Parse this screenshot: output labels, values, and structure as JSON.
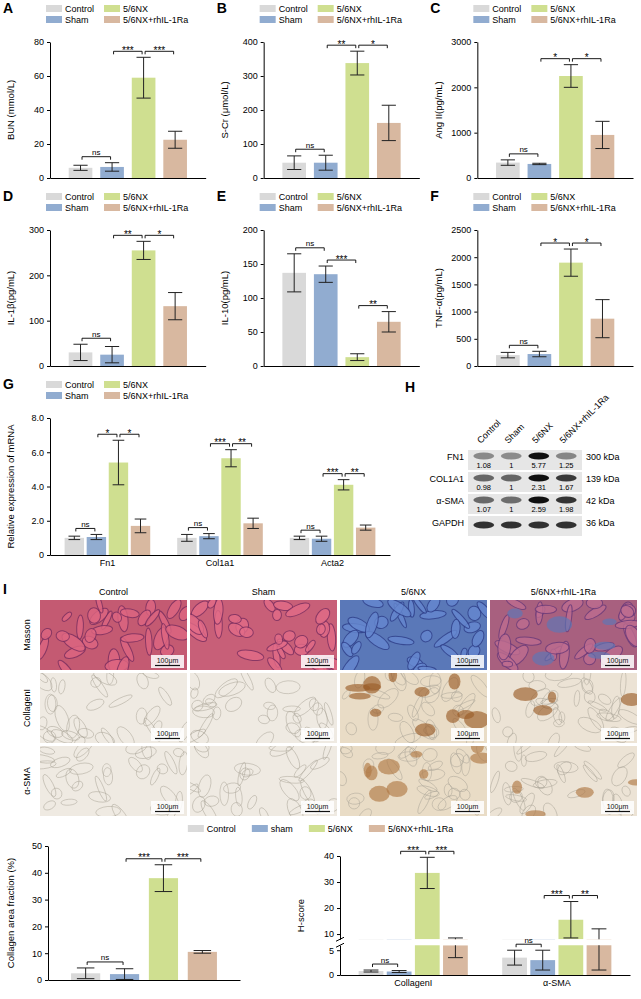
{
  "chart_data": [
    {
      "type": "bar",
      "panel": "A",
      "ylabel": "BUN (mmol/L)",
      "categories": [
        null
      ],
      "series": [
        {
          "name": "Control",
          "color": "#d9d9d9",
          "values": [
            6
          ],
          "errors": [
            1.5
          ]
        },
        {
          "name": "Sham",
          "color": "#91acd0",
          "values": [
            6.5
          ],
          "errors": [
            2.5
          ]
        },
        {
          "name": "5/6NX",
          "color": "#cfdf90",
          "values": [
            59
          ],
          "errors": [
            12
          ]
        },
        {
          "name": "5/6NX+rhIL-1Ra",
          "color": "#d8b8a0",
          "values": [
            22.5
          ],
          "errors": [
            5
          ]
        }
      ],
      "ylim": [
        0,
        80
      ],
      "yticks": [
        0,
        20,
        40,
        60,
        80
      ],
      "legend": "top",
      "tick_labels": "y",
      "significance": [
        {
          "pair": [
            "Control",
            "Sham"
          ],
          "label": "ns"
        },
        {
          "pair": [
            "Sham",
            "5/6NX"
          ],
          "label": "***"
        },
        {
          "pair": [
            "5/6NX",
            "5/6NX+rhIL-1Ra"
          ],
          "label": "***"
        }
      ]
    },
    {
      "type": "bar",
      "panel": "B",
      "ylabel": "S-Cr (μmol/L)",
      "categories": [
        null
      ],
      "series": [
        {
          "name": "Control",
          "color": "#d9d9d9",
          "values": [
            45
          ],
          "errors": [
            20
          ]
        },
        {
          "name": "Sham",
          "color": "#91acd0",
          "values": [
            45
          ],
          "errors": [
            22
          ]
        },
        {
          "name": "5/6NX",
          "color": "#cfdf90",
          "values": [
            338
          ],
          "errors": [
            35
          ]
        },
        {
          "name": "5/6NX+rhIL-1Ra",
          "color": "#d8b8a0",
          "values": [
            162
          ],
          "errors": [
            52
          ]
        }
      ],
      "ylim": [
        0,
        400
      ],
      "yticks": [
        0,
        100,
        200,
        300,
        400
      ],
      "legend": "top",
      "tick_labels": "y",
      "significance": [
        {
          "pair": [
            "Control",
            "Sham"
          ],
          "label": "ns"
        },
        {
          "pair": [
            "Sham",
            "5/6NX"
          ],
          "label": "**"
        },
        {
          "pair": [
            "5/6NX",
            "5/6NX+rhIL-1Ra"
          ],
          "label": "*"
        }
      ]
    },
    {
      "type": "bar",
      "panel": "C",
      "ylabel": "Ang II(pg/mL)",
      "categories": [
        null
      ],
      "series": [
        {
          "name": "Control",
          "color": "#d9d9d9",
          "values": [
            340
          ],
          "errors": [
            60
          ]
        },
        {
          "name": "Sham",
          "color": "#91acd0",
          "values": [
            310
          ],
          "errors": [
            15
          ]
        },
        {
          "name": "5/6NX",
          "color": "#cfdf90",
          "values": [
            2250
          ],
          "errors": [
            250
          ]
        },
        {
          "name": "5/6NX+rhIL-1Ra",
          "color": "#d8b8a0",
          "values": [
            950
          ],
          "errors": [
            300
          ]
        }
      ],
      "ylim": [
        0,
        3000
      ],
      "yticks": [
        0,
        1000,
        2000,
        3000
      ],
      "legend": "top",
      "tick_labels": "y",
      "significance": [
        {
          "pair": [
            "Control",
            "Sham"
          ],
          "label": "ns"
        },
        {
          "pair": [
            "Sham",
            "5/6NX"
          ],
          "label": "*"
        },
        {
          "pair": [
            "5/6NX",
            "5/6NX+rhIL-1Ra"
          ],
          "label": "*"
        }
      ]
    },
    {
      "type": "bar",
      "panel": "D",
      "ylabel": "IL-1β(pg/mL)",
      "categories": [
        null
      ],
      "series": [
        {
          "name": "Control",
          "color": "#d9d9d9",
          "values": [
            30
          ],
          "errors": [
            18
          ]
        },
        {
          "name": "Sham",
          "color": "#91acd0",
          "values": [
            25
          ],
          "errors": [
            18
          ]
        },
        {
          "name": "5/6NX",
          "color": "#cfdf90",
          "values": [
            255
          ],
          "errors": [
            20
          ]
        },
        {
          "name": "5/6NX+rhIL-1Ra",
          "color": "#d8b8a0",
          "values": [
            132
          ],
          "errors": [
            30
          ]
        }
      ],
      "ylim": [
        0,
        300
      ],
      "yticks": [
        0,
        100,
        200,
        300
      ],
      "legend": "top",
      "tick_labels": "y",
      "significance": [
        {
          "pair": [
            "Control",
            "Sham"
          ],
          "label": "ns"
        },
        {
          "pair": [
            "Sham",
            "5/6NX"
          ],
          "label": "**"
        },
        {
          "pair": [
            "5/6NX",
            "5/6NX+rhIL-1Ra"
          ],
          "label": "*"
        }
      ]
    },
    {
      "type": "bar",
      "panel": "E",
      "ylabel": "IL-10(pg/mL)",
      "categories": [
        null
      ],
      "series": [
        {
          "name": "Control",
          "color": "#d9d9d9",
          "values": [
            137
          ],
          "errors": [
            28
          ]
        },
        {
          "name": "Sham",
          "color": "#91acd0",
          "values": [
            135
          ],
          "errors": [
            12
          ]
        },
        {
          "name": "5/6NX",
          "color": "#cfdf90",
          "values": [
            13
          ],
          "errors": [
            5
          ]
        },
        {
          "name": "5/6NX+rhIL-1Ra",
          "color": "#d8b8a0",
          "values": [
            65
          ],
          "errors": [
            15
          ]
        }
      ],
      "ylim": [
        0,
        200
      ],
      "yticks": [
        0,
        50,
        100,
        150,
        200
      ],
      "legend": "top",
      "tick_labels": "y",
      "significance": [
        {
          "pair": [
            "Control",
            "Sham"
          ],
          "label": "ns"
        },
        {
          "pair": [
            "Sham",
            "5/6NX"
          ],
          "label": "***"
        },
        {
          "pair": [
            "5/6NX",
            "5/6NX+rhIL-1Ra"
          ],
          "label": "**"
        }
      ]
    },
    {
      "type": "bar",
      "panel": "F",
      "ylabel": "TNF-α(pg/mL)",
      "categories": [
        null
      ],
      "series": [
        {
          "name": "Control",
          "color": "#d9d9d9",
          "values": [
            200
          ],
          "errors": [
            50
          ]
        },
        {
          "name": "Sham",
          "color": "#91acd0",
          "values": [
            220
          ],
          "errors": [
            50
          ]
        },
        {
          "name": "5/6NX",
          "color": "#cfdf90",
          "values": [
            1900
          ],
          "errors": [
            250
          ]
        },
        {
          "name": "5/6NX+rhIL-1Ra",
          "color": "#d8b8a0",
          "values": [
            870
          ],
          "errors": [
            350
          ]
        }
      ],
      "ylim": [
        0,
        2500
      ],
      "yticks": [
        0,
        500,
        1000,
        1500,
        2000,
        2500
      ],
      "legend": "top",
      "tick_labels": "y",
      "significance": [
        {
          "pair": [
            "Control",
            "Sham"
          ],
          "label": "ns"
        },
        {
          "pair": [
            "Sham",
            "5/6NX"
          ],
          "label": "*"
        },
        {
          "pair": [
            "5/6NX",
            "5/6NX+rhIL-1Ra"
          ],
          "label": "*"
        }
      ]
    },
    {
      "type": "bar",
      "panel": "G",
      "ylabel": "Relative expression of mRNA",
      "categories": [
        "Fn1",
        "Col1a1",
        "Acta2"
      ],
      "series": [
        {
          "name": "Control",
          "color": "#d9d9d9",
          "values": [
            1.0,
            1.0,
            1.0
          ],
          "errors": [
            0.1,
            0.2,
            0.1
          ]
        },
        {
          "name": "Sham",
          "color": "#91acd0",
          "values": [
            1.05,
            1.1,
            0.95
          ],
          "errors": [
            0.15,
            0.15,
            0.15
          ]
        },
        {
          "name": "5/6NX",
          "color": "#cfdf90",
          "values": [
            5.4,
            5.65,
            4.1
          ],
          "errors": [
            1.3,
            0.5,
            0.3
          ]
        },
        {
          "name": "5/6NX+rhIL-1Ra",
          "color": "#d8b8a0",
          "values": [
            1.7,
            1.85,
            1.6
          ],
          "errors": [
            0.4,
            0.3,
            0.15
          ]
        }
      ],
      "ylim": [
        0,
        8
      ],
      "yticks": [
        0,
        {
          "value": 2,
          "label": "2.0"
        },
        {
          "value": 4,
          "label": "4.0"
        },
        {
          "value": 6,
          "label": "6.0"
        },
        {
          "value": 8,
          "label": "8.0"
        }
      ],
      "legend": "top",
      "significance": [
        {
          "category": "Fn1",
          "pair": [
            "Control",
            "Sham"
          ],
          "label": "ns"
        },
        {
          "category": "Fn1",
          "pair": [
            "Sham",
            "5/6NX"
          ],
          "label": "*"
        },
        {
          "category": "Fn1",
          "pair": [
            "5/6NX",
            "5/6NX+rhIL-1Ra"
          ],
          "label": "*"
        },
        {
          "category": "Col1a1",
          "pair": [
            "Control",
            "Sham"
          ],
          "label": "ns"
        },
        {
          "category": "Col1a1",
          "pair": [
            "Sham",
            "5/6NX"
          ],
          "label": "***"
        },
        {
          "category": "Col1a1",
          "pair": [
            "5/6NX",
            "5/6NX+rhIL-1Ra"
          ],
          "label": "**"
        },
        {
          "category": "Acta2",
          "pair": [
            "Control",
            "Sham"
          ],
          "label": "ns"
        },
        {
          "category": "Acta2",
          "pair": [
            "Sham",
            "5/6NX"
          ],
          "label": "***"
        },
        {
          "category": "Acta2",
          "pair": [
            "5/6NX",
            "5/6NX+rhIL-1Ra"
          ],
          "label": "**"
        }
      ]
    },
    {
      "type": "bar",
      "ylabel": "Collagen area fraction (%)",
      "categories": [
        null
      ],
      "series": [
        {
          "name": "Control",
          "color": "#d9d9d9",
          "values": [
            2.5
          ],
          "errors": [
            2
          ]
        },
        {
          "name": "sham",
          "color": "#91acd0",
          "values": [
            2.2
          ],
          "errors": [
            2
          ]
        },
        {
          "name": "5/6NX",
          "color": "#cfdf90",
          "values": [
            38
          ],
          "errors": [
            5
          ]
        },
        {
          "name": "5/6NX+rhIL-1Ra",
          "color": "#d8b8a0",
          "values": [
            10.5
          ],
          "errors": [
            0.5
          ]
        }
      ],
      "ylim": [
        0,
        50
      ],
      "yticks": [
        0,
        10,
        20,
        30,
        40,
        50
      ],
      "legend": "top",
      "tick_labels": "y",
      "significance": [
        {
          "pair": [
            "Control",
            "sham"
          ],
          "label": "ns"
        },
        {
          "pair": [
            "sham",
            "5/6NX"
          ],
          "label": "***"
        },
        {
          "pair": [
            "5/6NX",
            "5/6NX+rhIL-1Ra"
          ],
          "label": "***"
        }
      ]
    },
    {
      "type": "bar",
      "ylabel": "H-score",
      "categories": [
        "CollagenI",
        "α-SMA"
      ],
      "series": [
        {
          "name": "Control",
          "color": "#d9d9d9",
          "values": [
            0.8,
            3.5
          ],
          "errors": [
            0.2,
            1.5
          ]
        },
        {
          "name": "sham",
          "color": "#91acd0",
          "values": [
            0.7,
            3
          ],
          "errors": [
            0.2,
            2
          ]
        },
        {
          "name": "5/6NX",
          "color": "#cfdf90",
          "values": [
            33.5,
            15.5
          ],
          "errors": [
            6,
            7
          ]
        },
        {
          "name": "5/6NX+rhIL-1Ra",
          "color": "#d8b8a0",
          "values": [
            6,
            6.5
          ],
          "errors": [
            2.5,
            5.5
          ]
        }
      ],
      "ylim": [
        0,
        40
      ],
      "ybreak": [
        6,
        8
      ],
      "yticks": [
        0,
        5,
        10,
        20,
        30,
        40
      ],
      "significance": [
        {
          "category": "CollagenI",
          "pair": [
            "Control",
            "sham"
          ],
          "label": "ns"
        },
        {
          "category": "CollagenI",
          "pair": [
            "sham",
            "5/6NX"
          ],
          "label": "***"
        },
        {
          "category": "CollagenI",
          "pair": [
            "5/6NX",
            "5/6NX+rhIL-1Ra"
          ],
          "label": "***"
        },
        {
          "category": "α-SMA",
          "pair": [
            "Control",
            "sham"
          ],
          "label": "ns"
        },
        {
          "category": "α-SMA",
          "pair": [
            "sham",
            "5/6NX"
          ],
          "label": "***"
        },
        {
          "category": "α-SMA",
          "pair": [
            "5/6NX",
            "5/6NX+rhIL-1Ra"
          ],
          "label": "**"
        }
      ]
    }
  ],
  "blot": {
    "panel": "H",
    "columns": [
      "Control",
      "Sham",
      "5/6NX",
      "5/6NX+rhIL-1Ra"
    ],
    "rows": [
      {
        "name": "FN1",
        "values": [
          1.08,
          1,
          5.77,
          1.25
        ],
        "size": "300 kDa"
      },
      {
        "name": "COL1A1",
        "values": [
          0.98,
          1,
          2.31,
          1.67
        ],
        "size": "139 kDa"
      },
      {
        "name": "α-SMA",
        "values": [
          1.07,
          1,
          2.59,
          1.98
        ],
        "size": "42 kDa"
      },
      {
        "name": "GAPDH",
        "size": "36 kDa"
      }
    ]
  },
  "histology": {
    "panel": "I",
    "rows": [
      "Masson",
      "CollagenI",
      "α-SMA"
    ],
    "columns": [
      "Control",
      "Sham",
      "5/6NX",
      "5/6NX+rhIL-1Ra"
    ],
    "scale_bar": "100μm"
  }
}
